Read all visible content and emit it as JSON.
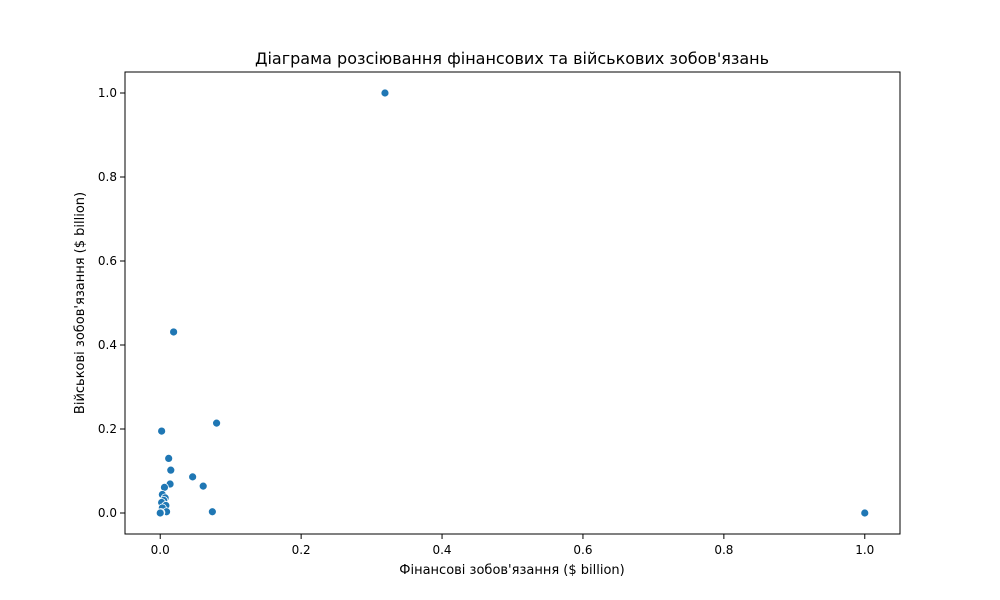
{
  "chart_data": {
    "type": "scatter",
    "title": "Діаграма розсіювання фінансових та військових зобов'язань",
    "xlabel": "Фінансові зобов'язання ($ billion)",
    "ylabel": "Військові зобов'язання ($ billion)",
    "xlim": [
      -0.05,
      1.05
    ],
    "ylim": [
      -0.05,
      1.05
    ],
    "x_ticks": [
      0.0,
      0.2,
      0.4,
      0.6,
      0.8,
      1.0
    ],
    "x_tick_labels": [
      "0.0",
      "0.2",
      "0.4",
      "0.6",
      "0.8",
      "1.0"
    ],
    "y_ticks": [
      0.0,
      0.2,
      0.4,
      0.6,
      0.8,
      1.0
    ],
    "y_tick_labels": [
      "0.0",
      "0.2",
      "0.4",
      "0.6",
      "0.8",
      "1.0"
    ],
    "grid": false,
    "point_color": "#1f77b4",
    "points": [
      {
        "x": 0.319,
        "y": 1.0
      },
      {
        "x": 1.0,
        "y": 0.0
      },
      {
        "x": 0.019,
        "y": 0.431
      },
      {
        "x": 0.08,
        "y": 0.214
      },
      {
        "x": 0.002,
        "y": 0.195
      },
      {
        "x": 0.012,
        "y": 0.13
      },
      {
        "x": 0.015,
        "y": 0.102
      },
      {
        "x": 0.046,
        "y": 0.086
      },
      {
        "x": 0.014,
        "y": 0.069
      },
      {
        "x": 0.061,
        "y": 0.064
      },
      {
        "x": 0.006,
        "y": 0.061
      },
      {
        "x": 0.003,
        "y": 0.044
      },
      {
        "x": 0.007,
        "y": 0.036
      },
      {
        "x": 0.005,
        "y": 0.03
      },
      {
        "x": 0.002,
        "y": 0.025
      },
      {
        "x": 0.008,
        "y": 0.018
      },
      {
        "x": 0.003,
        "y": 0.012
      },
      {
        "x": 0.009,
        "y": 0.003
      },
      {
        "x": 0.074,
        "y": 0.003
      },
      {
        "x": 0.001,
        "y": 0.001
      },
      {
        "x": 0.0,
        "y": 0.0
      }
    ]
  }
}
